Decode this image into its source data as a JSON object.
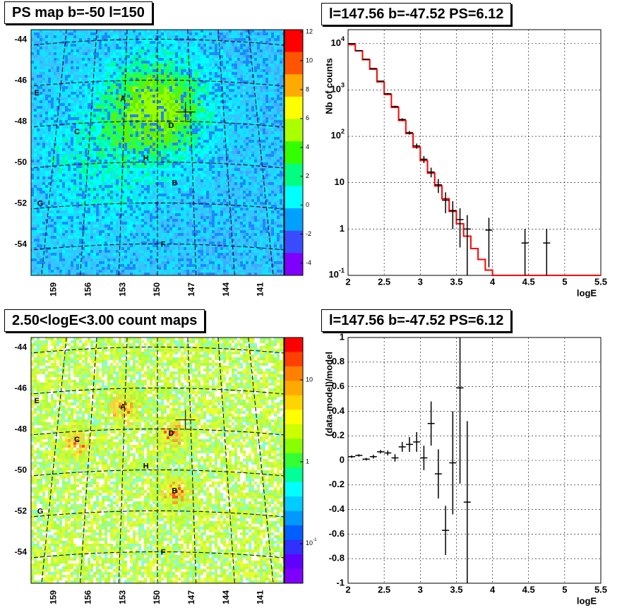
{
  "panels": {
    "ps_map": {
      "title": "PS map b=-50 l=150",
      "y_ticks": [
        "-44",
        "-46",
        "-48",
        "-50",
        "-52",
        "-54"
      ],
      "x_ticks": [
        "159",
        "156",
        "153",
        "150",
        "147",
        "144",
        "141"
      ],
      "colorbar_ticks": [
        "12",
        "10",
        "8",
        "6",
        "4",
        "2",
        "0",
        "-2",
        "-4"
      ],
      "sources": [
        "A",
        "B",
        "C",
        "D",
        "E",
        "F",
        "G",
        "H"
      ]
    },
    "spectrum": {
      "title": "l=147.56 b=-47.52 PS=6.12",
      "ylabel": "Nb of counts",
      "xlabel": "logE",
      "y_ticks": [
        "10^-1",
        "1",
        "10",
        "10^2",
        "10^3",
        "10^4"
      ],
      "x_ticks": [
        "2",
        "2.5",
        "3",
        "3.5",
        "4",
        "4.5",
        "5",
        "5.5"
      ]
    },
    "count_map": {
      "title": "2.50<logE<3.00 count maps",
      "y_ticks": [
        "-44",
        "-46",
        "-48",
        "-50",
        "-52",
        "-54"
      ],
      "x_ticks": [
        "159",
        "156",
        "153",
        "150",
        "147",
        "144",
        "141"
      ],
      "colorbar_ticks": [
        "10",
        "1",
        "10^-1"
      ],
      "sources": [
        "A",
        "B",
        "C",
        "D",
        "E",
        "F",
        "G",
        "H"
      ]
    },
    "residual": {
      "title": "l=147.56 b=-47.52 PS=6.12",
      "ylabel": "(data-model)/model",
      "xlabel": "logE",
      "y_ticks": [
        "1",
        "0.8",
        "0.6",
        "0.4",
        "0.2",
        "0",
        "-0.2",
        "-0.4",
        "-0.6",
        "-0.8",
        "-1"
      ],
      "x_ticks": [
        "2",
        "2.5",
        "3",
        "3.5",
        "4",
        "4.5",
        "5",
        "5.5"
      ]
    }
  },
  "chart_data": [
    {
      "type": "heatmap",
      "title": "PS map b=-50 l=150",
      "xlabel": "",
      "ylabel": "",
      "x_range": [
        161,
        139
      ],
      "y_range": [
        -55.5,
        -43.5
      ],
      "color_range": [
        -5,
        12
      ],
      "colormap": [
        "#7f00ff",
        "#3a4cff",
        "#00a0ff",
        "#00ffff",
        "#00ff80",
        "#33ff00",
        "#aaff00",
        "#ffff00",
        "#ffaa00",
        "#ff5500",
        "#ff0000"
      ],
      "sources": [
        {
          "label": "A",
          "l": 153,
          "b": -46.9
        },
        {
          "label": "B",
          "l": 148.5,
          "b": -51.0
        },
        {
          "label": "C",
          "l": 157,
          "b": -48.5
        },
        {
          "label": "D",
          "l": 148.8,
          "b": -48.2
        },
        {
          "label": "E",
          "l": 160.5,
          "b": -46.6
        },
        {
          "label": "F",
          "l": 149.5,
          "b": -54.0
        },
        {
          "label": "G",
          "l": 160.2,
          "b": -52.0
        },
        {
          "label": "H",
          "l": 151.0,
          "b": -49.8
        }
      ],
      "marker": {
        "l": 147.56,
        "b": -47.52
      }
    },
    {
      "type": "line",
      "title": "l=147.56 b=-47.52 PS=6.12",
      "xlabel": "logE",
      "ylabel": "Nb of counts",
      "xlim": [
        2,
        5.5
      ],
      "ylim": [
        0.1,
        20000
      ],
      "yscale": "log",
      "grid": true,
      "series": [
        {
          "style": "step-model",
          "color": "#ff0000",
          "x": [
            2.0,
            2.1,
            2.2,
            2.3,
            2.4,
            2.5,
            2.6,
            2.7,
            2.8,
            2.9,
            3.0,
            3.1,
            3.2,
            3.3,
            3.4,
            3.5,
            3.6,
            3.7,
            3.8,
            3.9,
            4.0,
            5.5
          ],
          "values": [
            9500,
            7000,
            4500,
            2800,
            1500,
            800,
            420,
            220,
            115,
            58,
            30,
            16,
            8.5,
            4.5,
            2.4,
            1.3,
            0.7,
            0.38,
            0.22,
            0.13,
            0.1,
            0.1
          ]
        },
        {
          "style": "points-errorbars",
          "color": "#000000",
          "x": [
            2.05,
            2.15,
            2.25,
            2.35,
            2.45,
            2.55,
            2.65,
            2.75,
            2.85,
            2.95,
            3.05,
            3.15,
            3.25,
            3.35,
            3.45,
            3.55,
            3.65,
            3.95,
            4.45,
            4.75
          ],
          "values": [
            10000,
            7000,
            4600,
            2900,
            1550,
            830,
            440,
            230,
            120,
            62,
            32,
            17,
            9,
            4.2,
            2.5,
            1.6,
            1.0,
            0.95,
            0.5,
            0.5
          ],
          "err_low": [
            100,
            80,
            68,
            54,
            40,
            29,
            21,
            15,
            11,
            8,
            5.5,
            4,
            3,
            2,
            1.5,
            1.2,
            1.0,
            0.8,
            0.5,
            0.5
          ],
          "err_high": [
            100,
            80,
            68,
            54,
            40,
            29,
            21,
            15,
            11,
            8,
            5.5,
            4,
            3,
            2,
            1.5,
            1.2,
            1.0,
            0.8,
            0.5,
            0.5
          ]
        }
      ]
    },
    {
      "type": "heatmap",
      "title": "2.50<logE<3.00 count maps",
      "xlabel": "",
      "ylabel": "",
      "x_range": [
        161,
        139
      ],
      "y_range": [
        -55.5,
        -43.5
      ],
      "color_range": [
        0.03,
        30
      ],
      "color_scale": "log",
      "sources": [
        {
          "label": "A",
          "l": 153,
          "b": -46.9
        },
        {
          "label": "B",
          "l": 148.5,
          "b": -51.0
        },
        {
          "label": "C",
          "l": 157,
          "b": -48.5
        },
        {
          "label": "D",
          "l": 148.8,
          "b": -48.2
        },
        {
          "label": "E",
          "l": 160.5,
          "b": -46.6
        },
        {
          "label": "F",
          "l": 149.5,
          "b": -54.0
        },
        {
          "label": "G",
          "l": 160.2,
          "b": -52.0
        },
        {
          "label": "H",
          "l": 151.0,
          "b": -49.8
        }
      ],
      "marker": {
        "l": 147.56,
        "b": -47.52
      }
    },
    {
      "type": "scatter",
      "title": "l=147.56 b=-47.52 PS=6.12",
      "xlabel": "logE",
      "ylabel": "(data-model)/model",
      "xlim": [
        2,
        5.5
      ],
      "ylim": [
        -1,
        1
      ],
      "grid": true,
      "series": [
        {
          "style": "points-errorbars",
          "color": "#000000",
          "x": [
            2.05,
            2.15,
            2.25,
            2.35,
            2.45,
            2.55,
            2.65,
            2.75,
            2.85,
            2.95,
            3.05,
            3.15,
            3.25,
            3.35,
            3.45,
            3.55,
            3.65
          ],
          "values": [
            0.03,
            0.04,
            0.01,
            0.03,
            0.07,
            0.06,
            0.02,
            0.11,
            0.13,
            0.15,
            0.02,
            0.3,
            -0.11,
            -0.57,
            -0.02,
            0.59,
            -0.34
          ],
          "err": [
            0.01,
            0.01,
            0.01,
            0.015,
            0.015,
            0.02,
            0.03,
            0.04,
            0.06,
            0.08,
            0.1,
            0.18,
            0.2,
            0.2,
            0.42,
            0.78,
            0.66
          ]
        }
      ]
    }
  ]
}
